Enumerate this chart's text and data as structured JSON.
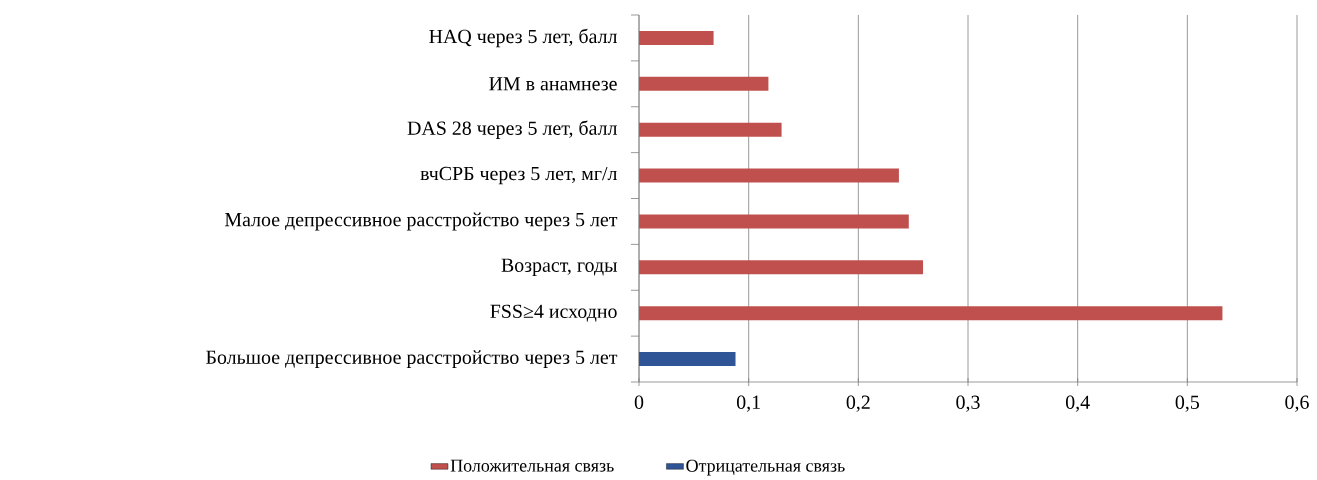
{
  "chart_data": {
    "type": "bar",
    "orientation": "horizontal",
    "categories": [
      "HAQ через 5 лет, балл",
      "ИМ в анамнезе",
      "DAS 28 через 5 лет, балл",
      "вчСРБ через 5 лет, мг/л",
      "Малое депрессивное расстройство через 5 лет",
      "Возраст, годы",
      "FSS≥4 исходно",
      "Большое депрессивное расстройство через 5 лет"
    ],
    "series": [
      {
        "name": "Положительная связь",
        "color": "#c0504d",
        "values": [
          0.068,
          0.118,
          0.13,
          0.237,
          0.246,
          0.259,
          0.532,
          null
        ]
      },
      {
        "name": "Отрицательная связь",
        "color": "#2f5597",
        "values": [
          null,
          null,
          null,
          null,
          null,
          null,
          null,
          0.088
        ]
      }
    ],
    "xlim": [
      0,
      0.6
    ],
    "xticks": [
      0,
      {
        "value": 0.1,
        "label": "0,1"
      },
      {
        "value": 0.2,
        "label": "0,2"
      },
      {
        "value": 0.3,
        "label": "0,3"
      },
      {
        "value": 0.4,
        "label": "0,4"
      },
      {
        "value": 0.5,
        "label": "0,5"
      },
      {
        "value": 0.6,
        "label": "0,6"
      }
    ],
    "grid": "x",
    "legend": "bottom"
  }
}
